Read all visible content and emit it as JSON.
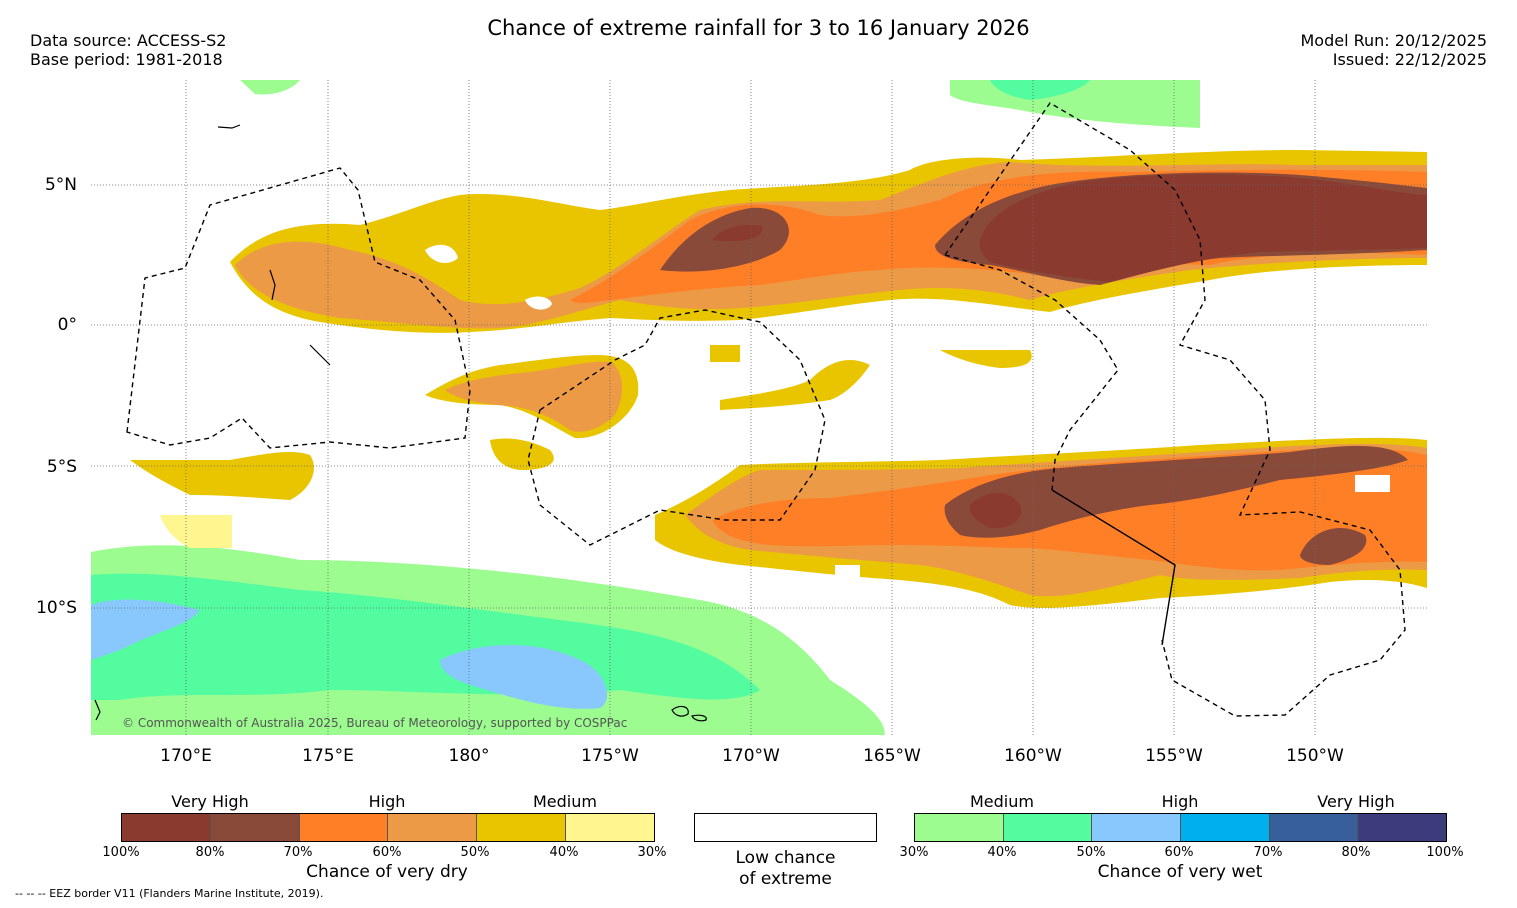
{
  "header": {
    "title": "Chance of extreme rainfall for 3 to 16 January 2026",
    "data_source": "Data source: ACCESS-S2",
    "base_period": "Base period: 1981-2018",
    "model_run": "Model Run: 20/12/2025",
    "issued": "Issued: 22/12/2025"
  },
  "map": {
    "lat_labels": [
      "5°N",
      "0°",
      "5°S",
      "10°S"
    ],
    "lon_labels": [
      "170°E",
      "175°E",
      "180°",
      "175°W",
      "170°W",
      "165°W",
      "160°W",
      "155°W",
      "150°W"
    ],
    "credit": "© Commonwealth of Australia 2025, Bureau of Meteorology, supported by COSPPac"
  },
  "legend": {
    "dry": {
      "headings": [
        "Very High",
        "High",
        "Medium"
      ],
      "ticks": [
        "100%",
        "80%",
        "70%",
        "60%",
        "50%",
        "40%",
        "30%"
      ],
      "colors": [
        "#8b3a2f",
        "#8a4a3a",
        "#ff7f27",
        "#ec9a46",
        "#e9c500",
        "#fff68f"
      ],
      "title": "Chance of very dry"
    },
    "neutral": {
      "line1": "Low chance",
      "line2": "of extreme"
    },
    "wet": {
      "headings": [
        "Medium",
        "High",
        "Very High"
      ],
      "ticks": [
        "30%",
        "40%",
        "50%",
        "60%",
        "70%",
        "80%",
        "100%"
      ],
      "colors": [
        "#9cfc90",
        "#54fca0",
        "#88c8fc",
        "#00b0ee",
        "#365f9c",
        "#3c3c7c"
      ],
      "title": "Chance of very wet"
    }
  },
  "footer": "--  --  -- EEZ border V11 (Flanders Marine Institute, 2019)."
}
